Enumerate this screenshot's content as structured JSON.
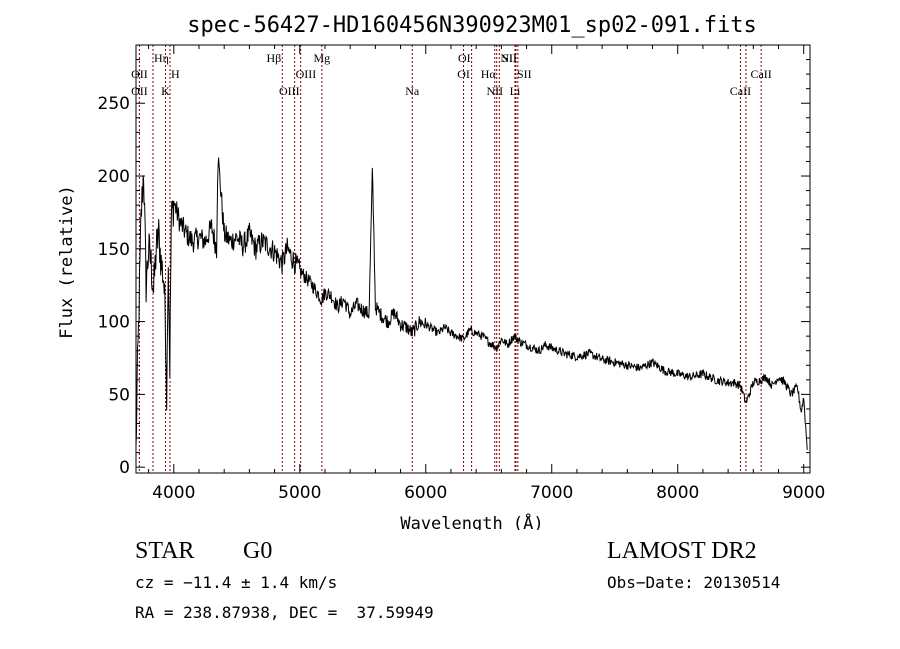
{
  "chart_data": {
    "type": "line",
    "title": "spec-56427-HD160456N390923M01_sp02-091.fits",
    "xlabel": "Wavelength (Å)",
    "ylabel": "Flux (relative)",
    "xlim": [
      3700,
      9050
    ],
    "ylim": [
      -4,
      290
    ],
    "xticks": [
      4000,
      5000,
      6000,
      7000,
      8000,
      9000
    ],
    "yticks": [
      0,
      50,
      100,
      150,
      200,
      250
    ],
    "grid": false,
    "legend": "none",
    "line_color": "#000000",
    "marker_color": "#8b0000",
    "series": [
      {
        "x": [
          3700,
          3710,
          3720,
          3730,
          3740,
          3760,
          3780,
          3800,
          3820,
          3840,
          3860,
          3880,
          3900,
          3920,
          3934,
          3945,
          3955,
          3968,
          3980,
          4000,
          4050,
          4101,
          4150,
          4200,
          4250,
          4300,
          4340,
          4350,
          4400,
          4450,
          4500,
          4550,
          4600,
          4650,
          4700,
          4750,
          4800,
          4861,
          4900,
          4950,
          5000,
          5050,
          5100,
          5175,
          5200,
          5250,
          5300,
          5350,
          5400,
          5450,
          5500,
          5550,
          5577,
          5600,
          5650,
          5700,
          5750,
          5800,
          5850,
          5893,
          5950,
          6000,
          6050,
          6100,
          6150,
          6200,
          6250,
          6300,
          6350,
          6400,
          6450,
          6500,
          6563,
          6600,
          6650,
          6700,
          6750,
          6800,
          6850,
          6900,
          6950,
          7000,
          7100,
          7200,
          7300,
          7400,
          7500,
          7600,
          7700,
          7800,
          7900,
          8000,
          8100,
          8200,
          8300,
          8400,
          8450,
          8498,
          8542,
          8600,
          8662,
          8700,
          8750,
          8800,
          8850,
          8900,
          8950,
          8980,
          9000,
          9030
        ],
        "y": [
          10,
          60,
          95,
          130,
          170,
          205,
          125,
          150,
          140,
          120,
          150,
          160,
          140,
          130,
          100,
          45,
          150,
          70,
          170,
          182,
          168,
          160,
          155,
          158,
          155,
          165,
          150,
          215,
          160,
          155,
          158,
          152,
          160,
          150,
          155,
          152,
          148,
          140,
          150,
          142,
          135,
          130,
          125,
          115,
          120,
          118,
          110,
          115,
          105,
          112,
          108,
          105,
          205,
          110,
          104,
          100,
          106,
          98,
          96,
          92,
          100,
          98,
          95,
          92,
          96,
          92,
          90,
          88,
          94,
          92,
          90,
          86,
          82,
          88,
          84,
          90,
          86,
          84,
          82,
          80,
          84,
          82,
          78,
          76,
          78,
          74,
          72,
          70,
          68,
          72,
          66,
          64,
          62,
          64,
          60,
          58,
          58,
          56,
          44,
          58,
          60,
          62,
          56,
          62,
          58,
          50,
          55,
          38,
          48,
          10
        ]
      }
    ],
    "lines_top": [
      {
        "label": "Hη",
        "x": 3835,
        "row": 1,
        "align": "left"
      },
      {
        "label": "H",
        "x": 3970,
        "row": 2,
        "align": "left"
      },
      {
        "label": "Hβ",
        "x": 4861,
        "row": 1,
        "align": "right"
      },
      {
        "label": "OIII",
        "x": 4959,
        "row": 2,
        "align": "left"
      },
      {
        "label": "Mg",
        "x": 5175,
        "row": 1,
        "align": "center"
      },
      {
        "label": "OI",
        "x": 6364,
        "row": 1,
        "align": "right"
      },
      {
        "label": "NII",
        "x": 6584,
        "row": 1,
        "align": "left"
      },
      {
        "label": "Hα",
        "x": 6563,
        "row": 2,
        "align": "right"
      },
      {
        "label": "SII",
        "x": 6731,
        "row": 1,
        "align": "right"
      },
      {
        "label": "SII",
        "x": 6716,
        "row": 2,
        "align": "left"
      },
      {
        "label": "CaII",
        "x": 8662,
        "row": 2,
        "align": "center"
      }
    ],
    "lines_bottom": [
      {
        "label": "OII",
        "x": 3727,
        "row": 2,
        "align": "center"
      },
      {
        "label": "OII",
        "x": 3727,
        "row": 3,
        "align": "center"
      },
      {
        "label": "K",
        "x": 3934,
        "row": 3,
        "align": "center"
      },
      {
        "label": "OIII",
        "x": 5007,
        "row": 3,
        "align": "right"
      },
      {
        "label": "Na",
        "x": 5893,
        "row": 3,
        "align": "center"
      },
      {
        "label": "OI",
        "x": 6300,
        "row": 2,
        "align": "center"
      },
      {
        "label": "NII",
        "x": 6548,
        "row": 3,
        "align": "center"
      },
      {
        "label": "Li",
        "x": 6708,
        "row": 3,
        "align": "center"
      },
      {
        "label": "CaII",
        "x": 8498,
        "row": 3,
        "align": "center"
      }
    ],
    "marker_x": [
      3727,
      3835,
      3934,
      3970,
      4861,
      4959,
      5007,
      5175,
      5893,
      6300,
      6364,
      6548,
      6563,
      6584,
      6708,
      6716,
      6731,
      8498,
      8542,
      8662
    ]
  },
  "info": {
    "object_type": "STAR",
    "subclass": "G0",
    "survey": "LAMOST DR2",
    "redshift": "cz = −11.4 ± 1.4 km/s",
    "obs_date": "Obs−Date: 20130514",
    "coords": "RA = 238.87938, DEC =  37.59949"
  }
}
